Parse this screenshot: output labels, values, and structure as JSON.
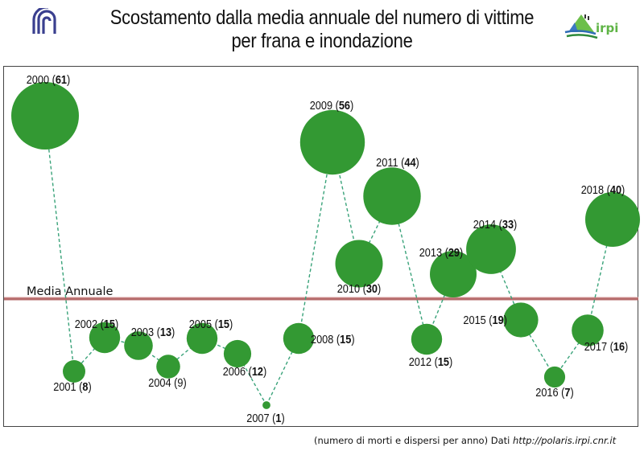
{
  "header": {
    "title_line1": "Scostamento dalla media annuale del numero di vittime",
    "title_line2": "per frana e inondazione",
    "logo_left": "cnr-logo",
    "logo_right": "irpi"
  },
  "footer": {
    "note": "(numero di morti e dispersi per anno) Dati ",
    "url": "http://polaris.irpi.cnr.it"
  },
  "chart_data": {
    "type": "scatter",
    "title": "Scostamento dalla media annuale del numero di vittime per frana e inondazione",
    "reference_line_label": "Media Annuale",
    "bubble_color": "#339933",
    "line_color": "#3aa37a",
    "reference_color": "#b56a6a",
    "points": [
      {
        "year": "2000",
        "value": 61,
        "bold": true
      },
      {
        "year": "2001",
        "value": 8,
        "bold": true
      },
      {
        "year": "2002",
        "value": 15,
        "bold": true
      },
      {
        "year": "2003",
        "value": 13,
        "bold": true
      },
      {
        "year": "2004",
        "value": 9,
        "bold": false
      },
      {
        "year": "2005",
        "value": 15,
        "bold": true
      },
      {
        "year": "2006",
        "value": 12,
        "bold": true
      },
      {
        "year": "2007",
        "value": 1,
        "bold": true
      },
      {
        "year": "2008",
        "value": 15,
        "bold": true
      },
      {
        "year": "2009",
        "value": 56,
        "bold": true
      },
      {
        "year": "2010",
        "value": 30,
        "bold": true
      },
      {
        "year": "2011",
        "value": 44,
        "bold": true
      },
      {
        "year": "2012",
        "value": 15,
        "bold": true
      },
      {
        "year": "2013",
        "value": 29,
        "bold": true
      },
      {
        "year": "2014",
        "value": 33,
        "bold": true
      },
      {
        "year": "2015",
        "value": 19,
        "bold": true
      },
      {
        "year": "2016",
        "value": 7,
        "bold": true
      },
      {
        "year": "2017",
        "value": 16,
        "bold": true
      },
      {
        "year": "2018",
        "value": 40,
        "bold": true
      }
    ]
  }
}
